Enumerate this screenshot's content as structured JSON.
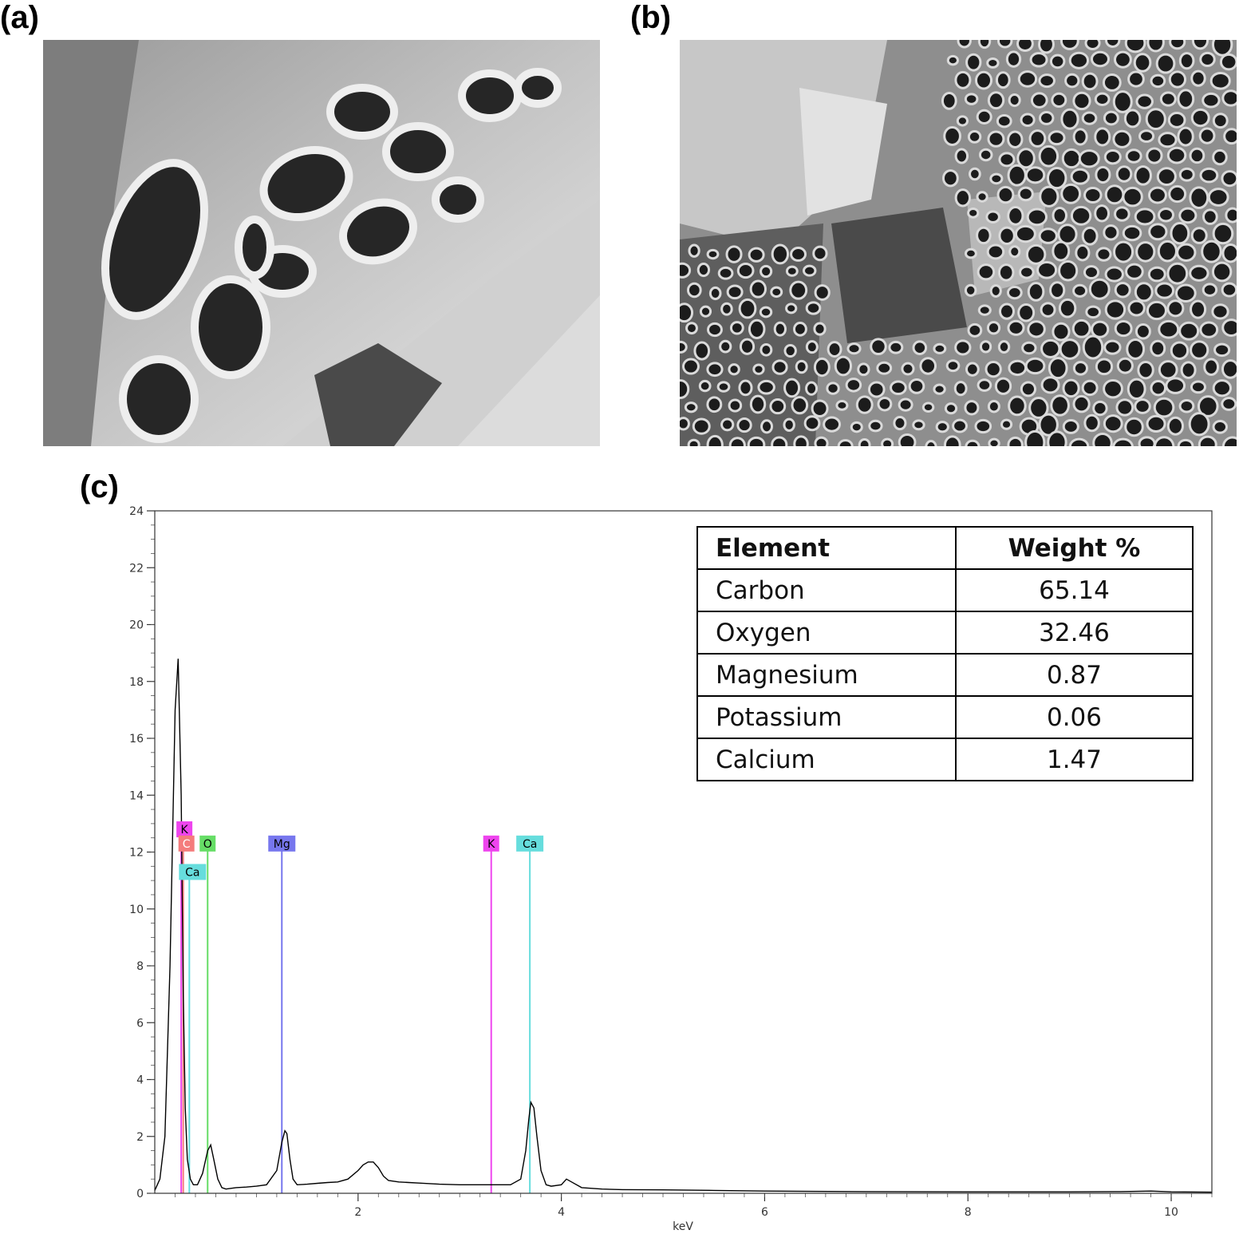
{
  "panels": {
    "a": "(a)",
    "b": "(b)",
    "c": "(c)"
  },
  "table": {
    "headers": [
      "Element",
      "Weight %"
    ],
    "rows": [
      [
        "Carbon",
        "65.14"
      ],
      [
        "Oxygen",
        "32.46"
      ],
      [
        "Magnesium",
        "0.87"
      ],
      [
        "Potassium",
        "0.06"
      ],
      [
        "Calcium",
        "1.47"
      ]
    ]
  },
  "chart_data": {
    "type": "line",
    "title": "",
    "xlabel": "keV",
    "ylabel": "",
    "xlim": [
      0,
      10.4
    ],
    "ylim": [
      0,
      24
    ],
    "x_ticks": [
      2,
      4,
      6,
      8,
      10
    ],
    "y_ticks": [
      0,
      2,
      4,
      6,
      8,
      10,
      12,
      14,
      16,
      18,
      20,
      22,
      24
    ],
    "grid": false,
    "spectrum": {
      "x": [
        0.0,
        0.05,
        0.1,
        0.15,
        0.2,
        0.23,
        0.26,
        0.28,
        0.3,
        0.32,
        0.35,
        0.38,
        0.42,
        0.47,
        0.52,
        0.55,
        0.58,
        0.62,
        0.66,
        0.7,
        0.8,
        0.9,
        1.0,
        1.1,
        1.2,
        1.25,
        1.28,
        1.3,
        1.33,
        1.36,
        1.4,
        1.5,
        1.6,
        1.7,
        1.8,
        1.9,
        2.0,
        2.05,
        2.1,
        2.15,
        2.2,
        2.25,
        2.3,
        2.4,
        2.5,
        2.6,
        2.8,
        3.0,
        3.2,
        3.3,
        3.4,
        3.5,
        3.6,
        3.65,
        3.68,
        3.7,
        3.73,
        3.76,
        3.8,
        3.85,
        3.9,
        4.0,
        4.05,
        4.1,
        4.2,
        4.4,
        4.6,
        5.0,
        5.5,
        6.0,
        7.0,
        8.0,
        9.0,
        9.5,
        9.8,
        10.0,
        10.4
      ],
      "y": [
        0.1,
        0.5,
        2.0,
        8.0,
        17.0,
        18.8,
        14.0,
        7.0,
        3.0,
        1.2,
        0.5,
        0.3,
        0.3,
        0.7,
        1.5,
        1.7,
        1.2,
        0.5,
        0.2,
        0.15,
        0.2,
        0.22,
        0.25,
        0.3,
        0.8,
        1.8,
        2.2,
        2.1,
        1.2,
        0.5,
        0.3,
        0.32,
        0.35,
        0.38,
        0.4,
        0.5,
        0.8,
        1.0,
        1.1,
        1.1,
        0.9,
        0.6,
        0.45,
        0.4,
        0.38,
        0.36,
        0.32,
        0.3,
        0.3,
        0.3,
        0.3,
        0.3,
        0.5,
        1.5,
        2.6,
        3.2,
        3.0,
        2.0,
        0.8,
        0.3,
        0.25,
        0.3,
        0.5,
        0.4,
        0.2,
        0.15,
        0.13,
        0.12,
        0.1,
        0.08,
        0.06,
        0.05,
        0.05,
        0.06,
        0.08,
        0.05,
        0.04
      ]
    },
    "peak_markers": [
      {
        "label": "K",
        "energy": 0.26,
        "color": "#ee44ee",
        "text_color": "#000000"
      },
      {
        "label": "C",
        "energy": 0.28,
        "color": "#f47c7c",
        "text_color": "#ffffff"
      },
      {
        "label": "Ca",
        "energy": 0.34,
        "color": "#66dddd",
        "text_color": "#000000"
      },
      {
        "label": "O",
        "energy": 0.52,
        "color": "#66dd66",
        "text_color": "#000000"
      },
      {
        "label": "Mg",
        "energy": 1.25,
        "color": "#7777ee",
        "text_color": "#000000"
      },
      {
        "label": "K",
        "energy": 3.31,
        "color": "#ee44ee",
        "text_color": "#000000"
      },
      {
        "label": "Ca",
        "energy": 3.69,
        "color": "#66dddd",
        "text_color": "#000000"
      }
    ],
    "line_colors": {
      "spectrum": "#000000",
      "carbon": "#f47c7c",
      "oxygen": "#33cc33",
      "magnesium": "#2222bb",
      "potassium": "#ee22ee",
      "calcium": "#33dddd"
    }
  }
}
